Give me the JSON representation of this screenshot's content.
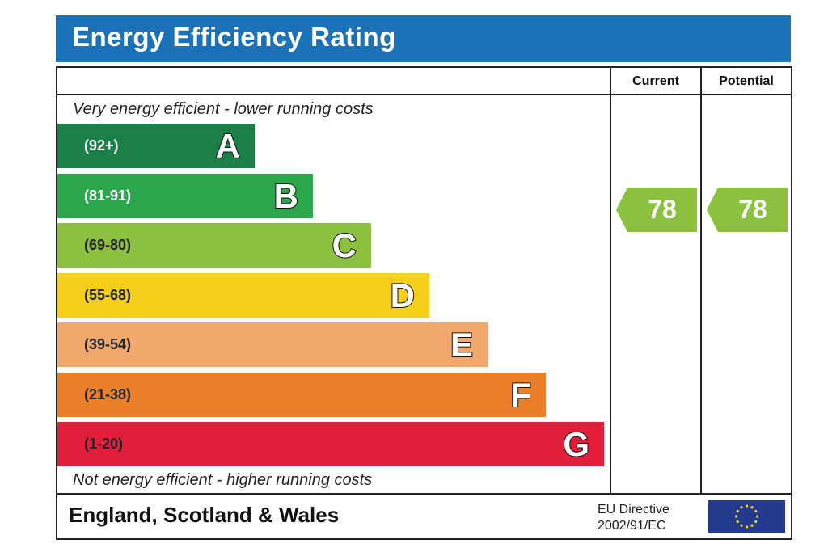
{
  "header": {
    "title": "Energy Efficiency Rating"
  },
  "columns": {
    "current": "Current",
    "potential": "Potential"
  },
  "captions": {
    "top": "Very energy efficient - lower running costs",
    "bottom": "Not energy efficient - higher running costs"
  },
  "chart_data": {
    "type": "bar",
    "title": "Energy Efficiency Rating",
    "categories": [
      "A",
      "B",
      "C",
      "D",
      "E",
      "F",
      "G"
    ],
    "series": [
      {
        "values": [
          "(92+)",
          "(81-91)",
          "(69-80)",
          "(55-68)",
          "(39-54)",
          "(21-38)",
          "(1-20)"
        ]
      }
    ],
    "bands": [
      {
        "letter": "A",
        "range": "(92+)",
        "color": "#1a8048",
        "text_color": "#ffffff"
      },
      {
        "letter": "B",
        "range": "(81-91)",
        "color": "#2aa64d",
        "text_color": "#ffffff"
      },
      {
        "letter": "C",
        "range": "(69-80)",
        "color": "#8cc13f",
        "text_color": "#222222"
      },
      {
        "letter": "D",
        "range": "(55-68)",
        "color": "#f5cf1a",
        "text_color": "#222222"
      },
      {
        "letter": "E",
        "range": "(39-54)",
        "color": "#f1a86c",
        "text_color": "#222222"
      },
      {
        "letter": "F",
        "range": "(21-38)",
        "color": "#ec7f29",
        "text_color": "#222222"
      },
      {
        "letter": "G",
        "range": "(1-20)",
        "color": "#e21f3b",
        "text_color": "#222222"
      }
    ],
    "current": {
      "value": 78,
      "band": "C",
      "color": "#8cc13f"
    },
    "potential": {
      "value": 78,
      "band": "C",
      "color": "#8cc13f"
    }
  },
  "footer": {
    "region": "England, Scotland & Wales",
    "directive_line1": "EU Directive",
    "directive_line2": "2002/91/EC"
  }
}
